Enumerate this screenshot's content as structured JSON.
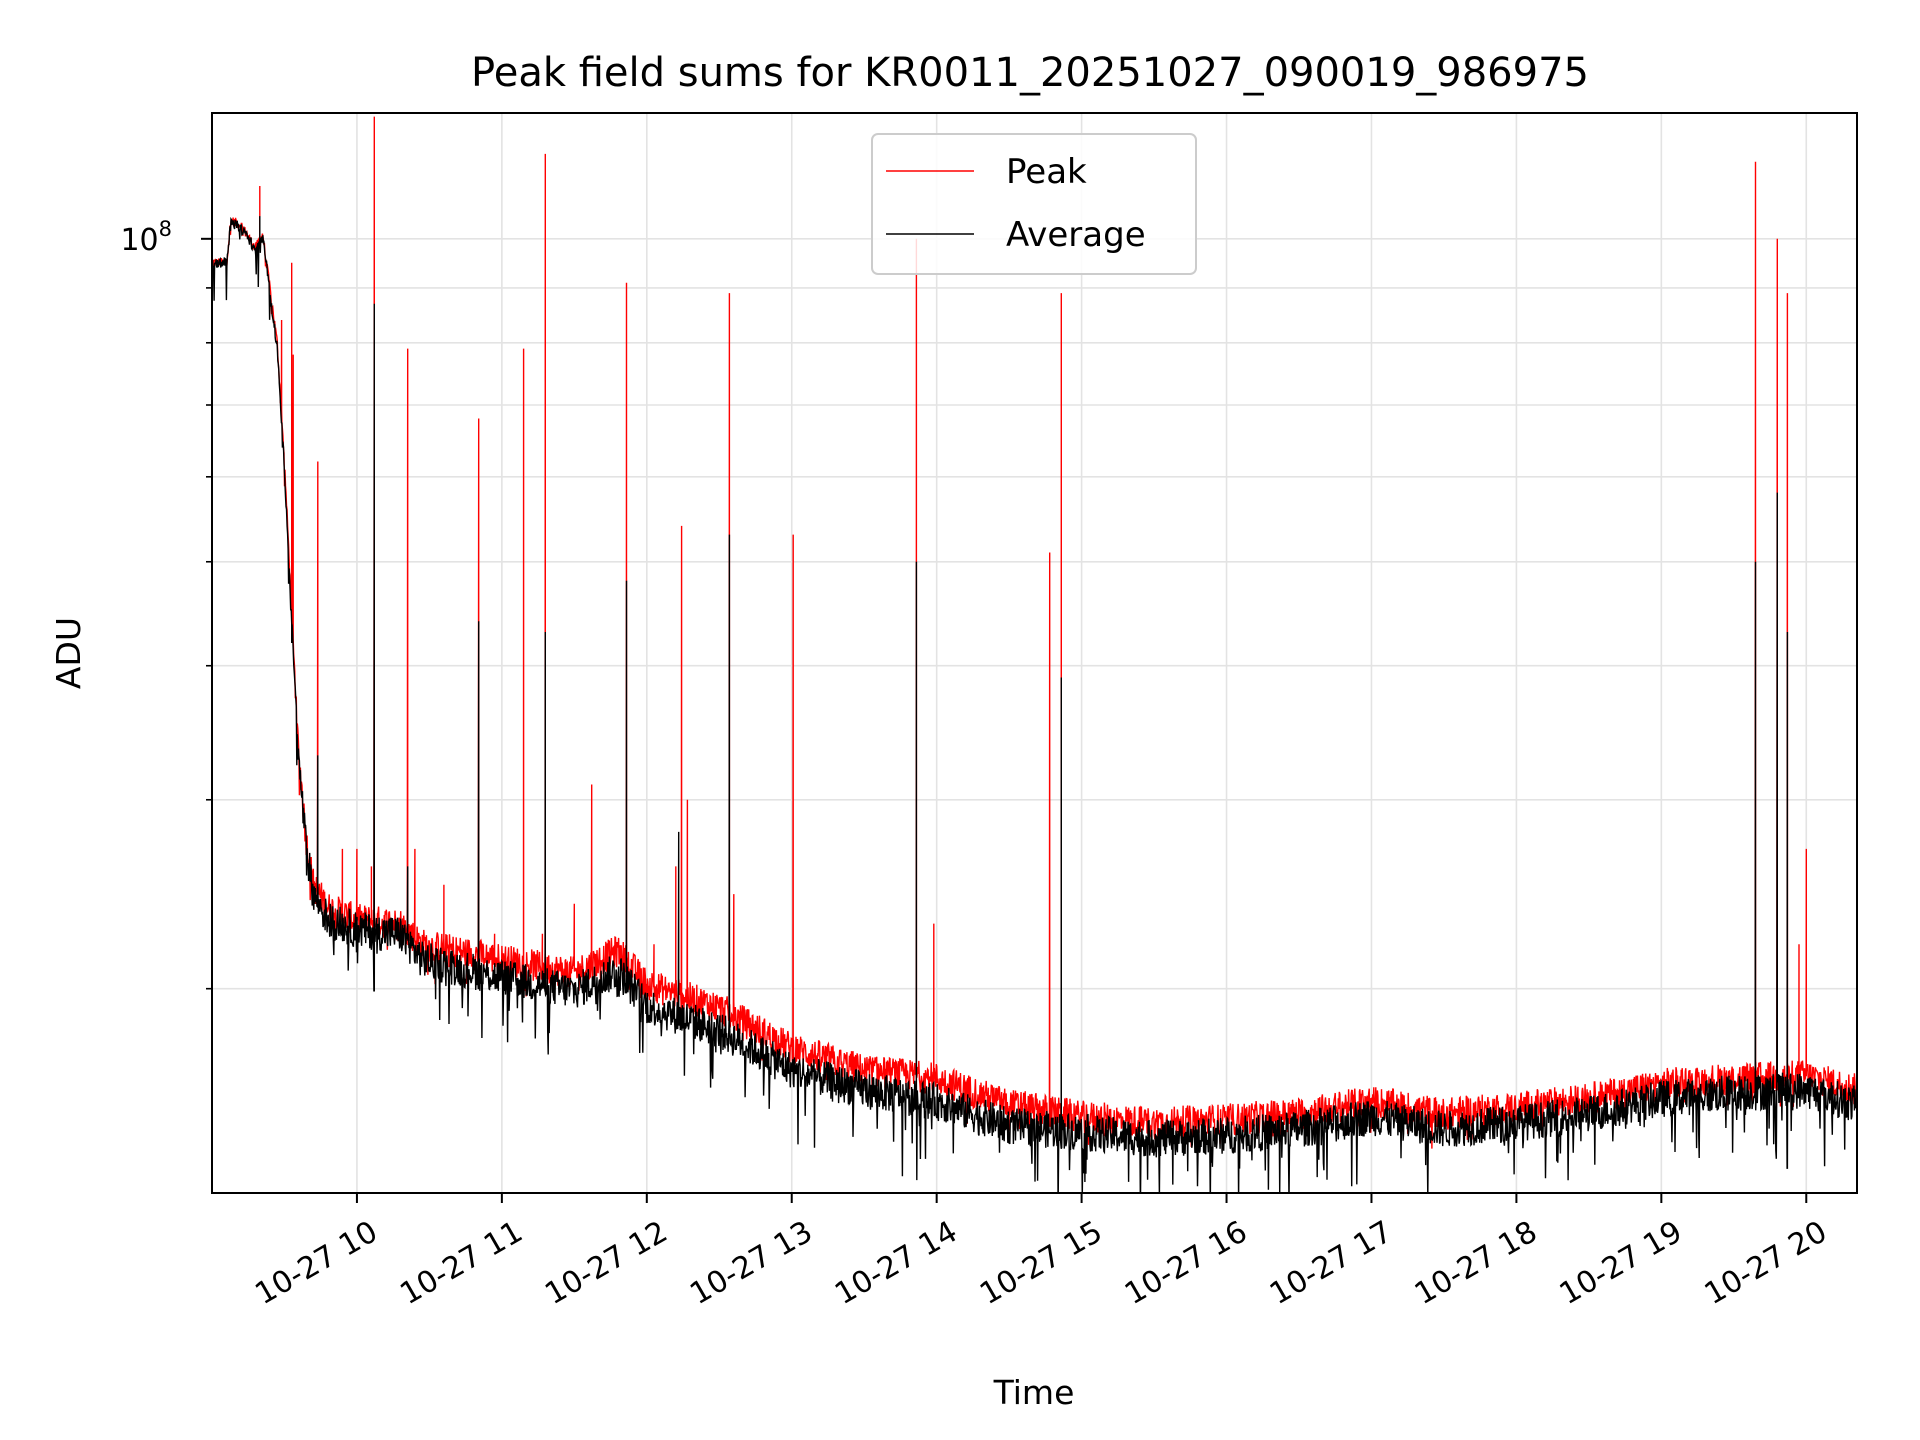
{
  "chart_data": {
    "type": "line",
    "title": "Peak field sums for KR0011_20251027_090019_986975",
    "xlabel": "Time",
    "ylabel": "ADU",
    "yscale": "log",
    "ylim": [
      12900000,
      131000000
    ],
    "xlim_hours": [
      9.0,
      20.35
    ],
    "x_tick_labels": [
      "10-27 10",
      "10-27 11",
      "10-27 12",
      "10-27 13",
      "10-27 14",
      "10-27 15",
      "10-27 16",
      "10-27 17",
      "10-27 18",
      "10-27 19",
      "10-27 20"
    ],
    "x_tick_hours": [
      10,
      11,
      12,
      13,
      14,
      15,
      16,
      17,
      18,
      19,
      20
    ],
    "y_tick_label_base": "10",
    "y_tick_label_exp": "8",
    "y_tick_values": [
      100000000
    ],
    "y_minor_ticks": [
      20000000,
      30000000,
      40000000,
      50000000,
      60000000,
      70000000,
      80000000,
      90000000
    ],
    "grid": true,
    "legend_position": "top-center",
    "series": [
      {
        "name": "Peak",
        "color": "#ff0000",
        "baseline": [
          [
            9.0,
            95000000
          ],
          [
            9.1,
            95000000
          ],
          [
            9.13,
            104000000
          ],
          [
            9.2,
            103000000
          ],
          [
            9.3,
            98000000
          ],
          [
            9.35,
            101000000
          ],
          [
            9.45,
            80000000
          ],
          [
            9.5,
            62000000
          ],
          [
            9.55,
            45000000
          ],
          [
            9.6,
            33000000
          ],
          [
            9.65,
            27500000
          ],
          [
            9.7,
            25000000
          ],
          [
            9.8,
            23800000
          ],
          [
            10.0,
            23200000
          ],
          [
            10.3,
            23000000
          ],
          [
            10.45,
            22000000
          ],
          [
            11.0,
            21300000
          ],
          [
            11.5,
            20700000
          ],
          [
            11.8,
            21700000
          ],
          [
            12.0,
            20200000
          ],
          [
            12.5,
            19200000
          ],
          [
            13.0,
            17600000
          ],
          [
            13.5,
            16800000
          ],
          [
            14.0,
            16500000
          ],
          [
            14.5,
            15600000
          ],
          [
            15.0,
            15200000
          ],
          [
            15.5,
            15000000
          ],
          [
            16.0,
            15100000
          ],
          [
            16.5,
            15300000
          ],
          [
            17.0,
            15700000
          ],
          [
            17.5,
            15300000
          ],
          [
            18.0,
            15500000
          ],
          [
            18.5,
            15800000
          ],
          [
            19.0,
            16300000
          ],
          [
            19.5,
            16500000
          ],
          [
            20.0,
            16600000
          ],
          [
            20.35,
            16100000
          ]
        ],
        "spikes": [
          [
            9.33,
            112000000
          ],
          [
            9.48,
            84000000
          ],
          [
            9.55,
            95000000
          ],
          [
            9.56,
            78000000
          ],
          [
            9.73,
            62000000
          ],
          [
            9.9,
            27000000
          ],
          [
            10.0,
            27000000
          ],
          [
            10.1,
            26000000
          ],
          [
            10.12,
            130000000
          ],
          [
            10.35,
            79000000
          ],
          [
            10.4,
            27000000
          ],
          [
            10.6,
            25000000
          ],
          [
            10.84,
            68000000
          ],
          [
            10.95,
            22500000
          ],
          [
            11.15,
            79000000
          ],
          [
            11.28,
            22500000
          ],
          [
            11.3,
            120000000
          ],
          [
            11.5,
            24000000
          ],
          [
            11.62,
            31000000
          ],
          [
            11.86,
            91000000
          ],
          [
            12.05,
            22000000
          ],
          [
            12.2,
            26000000
          ],
          [
            12.24,
            54000000
          ],
          [
            12.28,
            30000000
          ],
          [
            12.57,
            89000000
          ],
          [
            12.6,
            24500000
          ],
          [
            13.01,
            53000000
          ],
          [
            13.86,
            100000000
          ],
          [
            13.98,
            23000000
          ],
          [
            14.78,
            51000000
          ],
          [
            14.86,
            89000000
          ],
          [
            19.65,
            118000000
          ],
          [
            19.8,
            100000000
          ],
          [
            19.87,
            89000000
          ],
          [
            19.95,
            22000000
          ],
          [
            20.0,
            27000000
          ]
        ]
      },
      {
        "name": "Average",
        "color": "#000000",
        "baseline": [
          [
            9.0,
            95000000
          ],
          [
            9.1,
            95000000
          ],
          [
            9.13,
            103500000
          ],
          [
            9.2,
            102500000
          ],
          [
            9.3,
            97500000
          ],
          [
            9.35,
            100500000
          ],
          [
            9.45,
            79000000
          ],
          [
            9.5,
            61000000
          ],
          [
            9.55,
            44000000
          ],
          [
            9.6,
            32500000
          ],
          [
            9.65,
            27000000
          ],
          [
            9.7,
            24500000
          ],
          [
            9.8,
            23200000
          ],
          [
            10.0,
            22700000
          ],
          [
            10.3,
            22500000
          ],
          [
            10.45,
            21300000
          ],
          [
            11.0,
            20500000
          ],
          [
            11.5,
            19900000
          ],
          [
            11.8,
            20800000
          ],
          [
            12.0,
            19300000
          ],
          [
            12.5,
            18300000
          ],
          [
            13.0,
            16800000
          ],
          [
            13.5,
            16100000
          ],
          [
            14.0,
            15700000
          ],
          [
            14.5,
            14900000
          ],
          [
            15.0,
            14700000
          ],
          [
            15.5,
            14500000
          ],
          [
            16.0,
            14600000
          ],
          [
            16.5,
            14800000
          ],
          [
            17.0,
            15200000
          ],
          [
            17.5,
            14800000
          ],
          [
            18.0,
            15000000
          ],
          [
            18.5,
            15300000
          ],
          [
            19.0,
            15800000
          ],
          [
            19.5,
            16000000
          ],
          [
            20.0,
            16100000
          ],
          [
            20.35,
            15600000
          ]
        ],
        "spikes": [
          [
            9.33,
            105000000
          ],
          [
            9.55,
            42000000
          ],
          [
            9.73,
            33000000
          ],
          [
            10.12,
            87000000
          ],
          [
            10.35,
            26000000
          ],
          [
            10.84,
            44000000
          ],
          [
            11.3,
            43000000
          ],
          [
            11.86,
            48000000
          ],
          [
            12.22,
            28000000
          ],
          [
            12.57,
            53000000
          ],
          [
            13.86,
            50000000
          ],
          [
            14.86,
            39000000
          ],
          [
            19.65,
            50000000
          ],
          [
            19.8,
            58000000
          ],
          [
            19.87,
            43000000
          ]
        ]
      }
    ]
  }
}
